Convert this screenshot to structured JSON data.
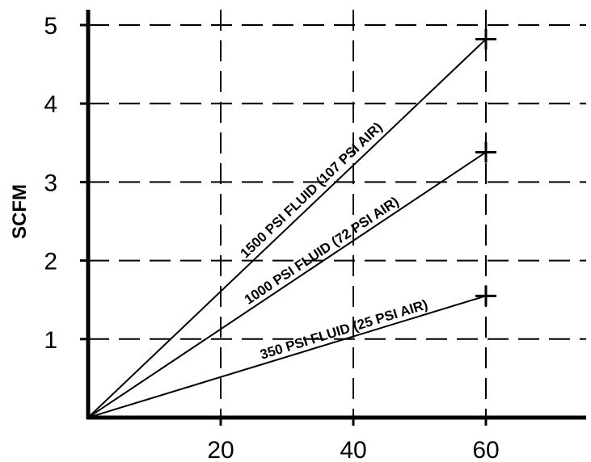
{
  "chart_data": {
    "type": "line",
    "title": "",
    "xlabel": "",
    "ylabel": "SCFM",
    "xlim": [
      0,
      62
    ],
    "ylim": [
      0,
      5
    ],
    "x_ticks": [
      20,
      40,
      60
    ],
    "y_ticks": [
      1,
      2,
      3,
      4,
      5
    ],
    "grid": true,
    "series": [
      {
        "name": "1500 PSI FLUID (107 PSI AIR)",
        "x": [
          0,
          60
        ],
        "y": [
          0,
          4.82
        ]
      },
      {
        "name": "1000 PSI FLUID (72 PSI AIR)",
        "x": [
          0,
          60
        ],
        "y": [
          0,
          3.38
        ]
      },
      {
        "name": "350 PSI FLUID (25 PSI AIR)",
        "x": [
          0,
          60
        ],
        "y": [
          0,
          1.55
        ]
      }
    ]
  }
}
